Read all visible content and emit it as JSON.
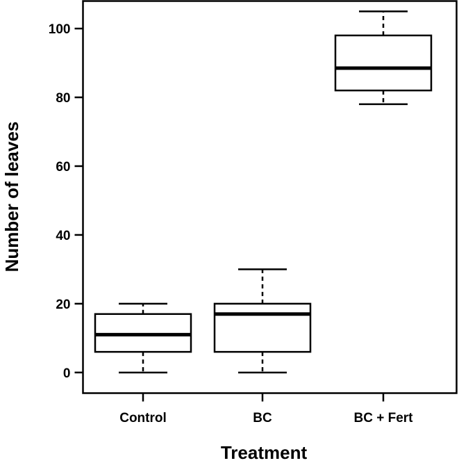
{
  "chart_data": {
    "type": "boxplot",
    "title": "",
    "xlabel": "Treatment",
    "ylabel": "Number of leaves",
    "ylim": [
      -6,
      108
    ],
    "yticks": [
      0,
      20,
      40,
      60,
      80,
      100
    ],
    "categories": [
      "Control",
      "BC",
      "BC + Fert"
    ],
    "boxes": [
      {
        "name": "Control",
        "min": 0,
        "q1": 6,
        "median": 11,
        "q3": 17,
        "max": 20
      },
      {
        "name": "BC",
        "min": 0,
        "q1": 6,
        "median": 17,
        "q3": 20,
        "max": 30
      },
      {
        "name": "BC + Fert",
        "min": 78,
        "q1": 82,
        "median": 88.5,
        "q3": 98,
        "max": 105
      }
    ]
  }
}
